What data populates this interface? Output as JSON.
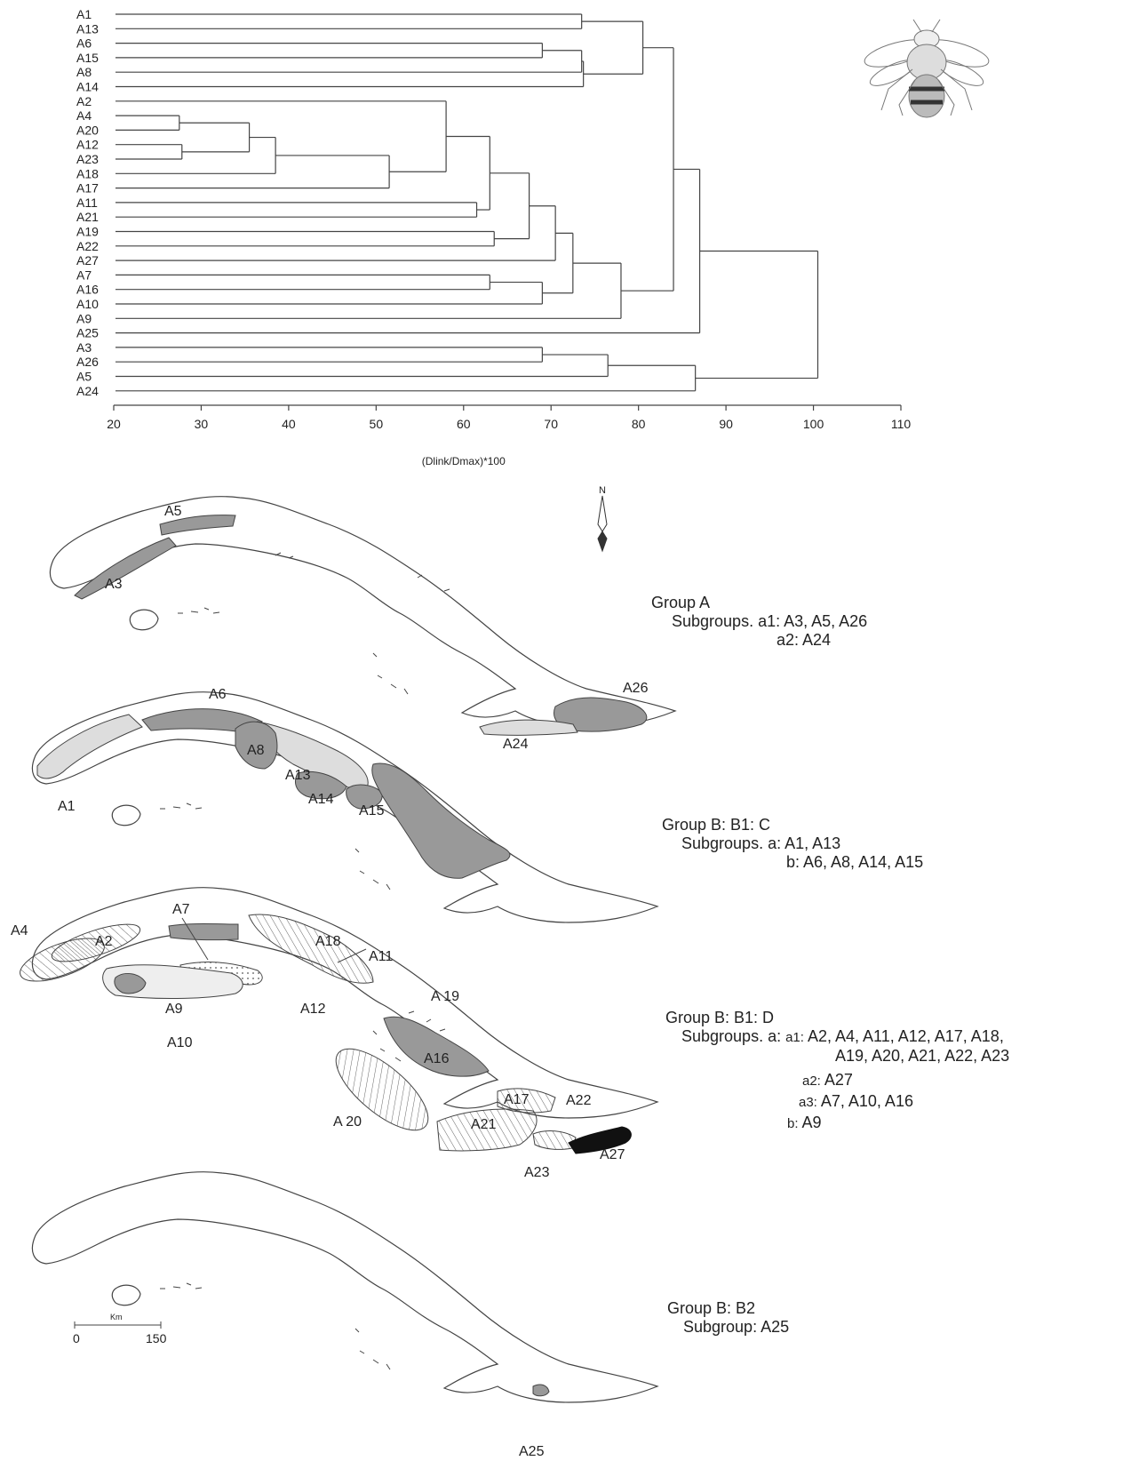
{
  "dendrogram": {
    "leaves": [
      "A1",
      "A13",
      "A6",
      "A15",
      "A8",
      "A14",
      "A2",
      "A4",
      "A20",
      "A12",
      "A23",
      "A18",
      "A17",
      "A11",
      "A21",
      "A19",
      "A22",
      "A27",
      "A7",
      "A16",
      "A10",
      "A9",
      "A25",
      "A3",
      "A26",
      "A5",
      "A24"
    ],
    "merges": [
      {
        "a": "A4",
        "b": "A20",
        "height": 27.5
      },
      {
        "a": "A12",
        "b": "A23",
        "height": 27.8
      },
      {
        "a": "A4+A20",
        "b": "A12+A23",
        "height": 35.5
      },
      {
        "a": "(A4-A23)",
        "b": "A18",
        "height": 38.5
      },
      {
        "a": "(A4-A18)",
        "b": "A17",
        "height": 51.5
      },
      {
        "a": "A2",
        "b": "(A4-A17)",
        "height": 58
      },
      {
        "a": "A11",
        "b": "A21",
        "height": 61.5
      },
      {
        "a": "(A2-A17)",
        "b": "A11+A21",
        "height": 63
      },
      {
        "a": "A19",
        "b": "A22",
        "height": 63.5
      },
      {
        "a": "(A2-A21)",
        "b": "A19+A22",
        "height": 67.5
      },
      {
        "a": "(A2-A22)",
        "b": "A27",
        "height": 70.5
      },
      {
        "a": "A7",
        "b": "A16",
        "height": 63
      },
      {
        "a": "A7+A16",
        "b": "A10",
        "height": 69
      },
      {
        "a": "(A2-A27)",
        "b": "(A7-A10)",
        "height": 72.5
      },
      {
        "a": "(A2-A10)",
        "b": "A9",
        "height": 78
      },
      {
        "a": "A6",
        "b": "A15",
        "height": 69
      },
      {
        "a": "A6+A15",
        "b": "A8",
        "height": 73.5
      },
      {
        "a": "(A6-A8)",
        "b": "A14",
        "height": 73.7
      },
      {
        "a": "A1",
        "b": "A13",
        "height": 73.5
      },
      {
        "a": "A1+A13",
        "b": "(A6-A14)",
        "height": 80.5
      },
      {
        "a": "(A1-A14)",
        "b": "(A2-A9)",
        "height": 84
      },
      {
        "a": "(A1-A9)",
        "b": "A25",
        "height": 87
      },
      {
        "a": "A3",
        "b": "A26",
        "height": 69
      },
      {
        "a": "A3+A26",
        "b": "A5",
        "height": 76.5
      },
      {
        "a": "(A3-A5)",
        "b": "A24",
        "height": 86.5
      },
      {
        "a": "(A1-A25)",
        "b": "(A3-A24)",
        "height": 100.5
      }
    ],
    "x_ticks": [
      20,
      30,
      40,
      50,
      60,
      70,
      80,
      90,
      100,
      110
    ],
    "x_axis_label": "(Dlink/Dmax)*100"
  },
  "maps": {
    "north_label": "N",
    "scale_unit": "Km",
    "scale_ticks": [
      "0",
      "150"
    ],
    "map1_labels": [
      "A5",
      "A3",
      "A26",
      "A24"
    ],
    "map2_labels": [
      "A6",
      "A8",
      "A13",
      "A14",
      "A15",
      "A1"
    ],
    "map3_labels": [
      "A4",
      "A2",
      "A7",
      "A18",
      "A11",
      "A 19",
      "A9",
      "A12",
      "A10",
      "A16",
      "A17",
      "A22",
      "A 20",
      "A21",
      "A23",
      "A27"
    ],
    "map4_labels": [
      "A25"
    ]
  },
  "groups": {
    "group_a": {
      "title": "Group A",
      "line1": "Subgroups. a1: A3, A5, A26",
      "line2": "a2: A24"
    },
    "group_b1c": {
      "title": "Group B: B1: C",
      "line1": "Subgroups. a:  A1, A13",
      "line2": "b: A6, A8, A14, A15"
    },
    "group_b1d": {
      "title": "Group B: B1: D",
      "line1_prefix": "Subgroups. a:",
      "a1_tag": "a1:",
      "a1_text": "A2, A4, A11, A12, A17, A18,",
      "a1_text2": "A19, A20, A21, A22, A23",
      "a2_tag": "a2:",
      "a2_text": "A27",
      "a3_tag": "a3:",
      "a3_text": "A7, A10, A16",
      "b_tag": "b:",
      "b_text": "A9"
    },
    "group_b2": {
      "title": "Group B: B2",
      "line1": "Subgroup: A25"
    }
  },
  "colors": {
    "line": "#444444",
    "dark_fill": "#999999",
    "light_fill": "#dddddd",
    "black_fill": "#111111"
  }
}
